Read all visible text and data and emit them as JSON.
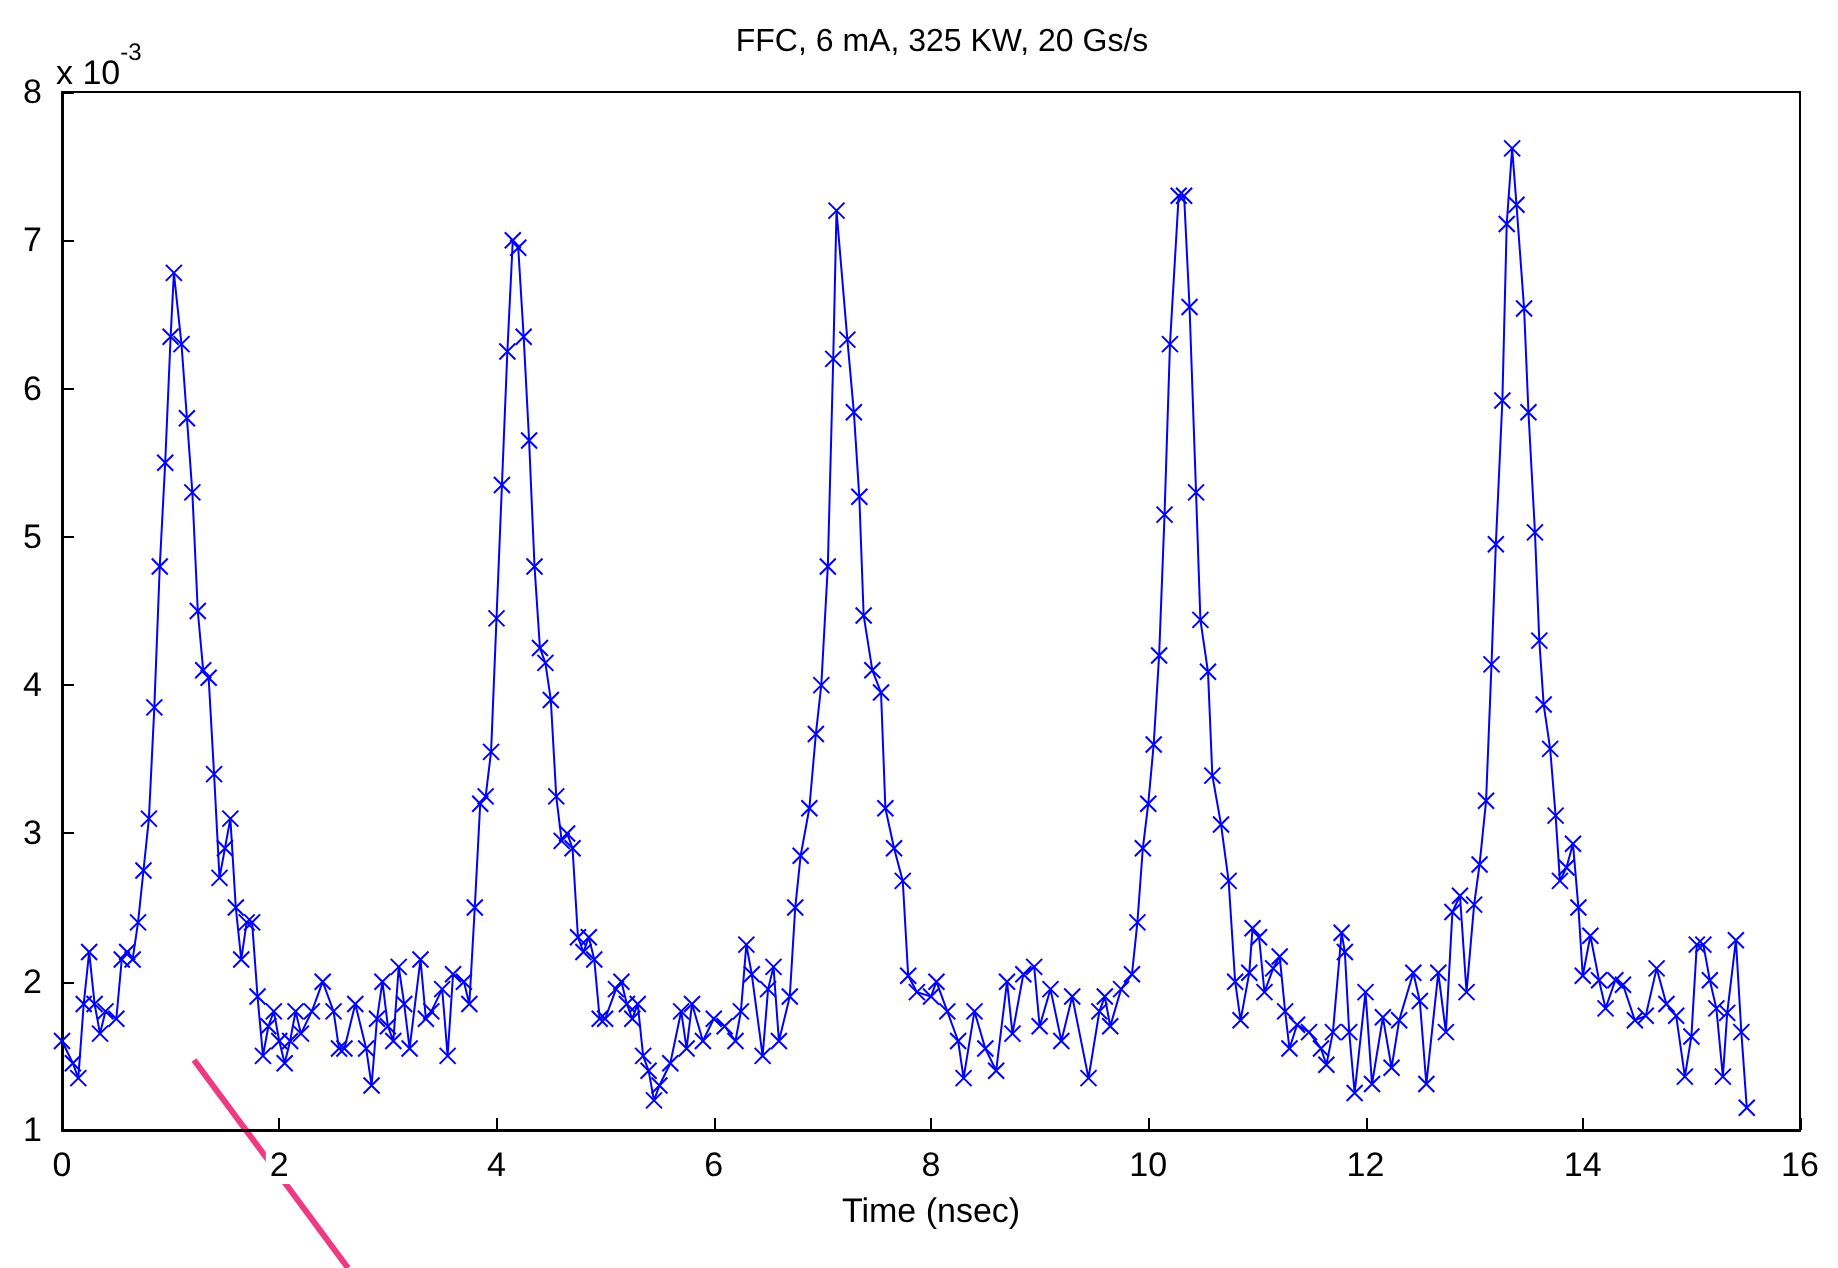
{
  "chart_data": {
    "type": "line",
    "title": "FFC, 6 mA, 325 KW, 20 Gs/s",
    "xlabel": "Time (nsec)",
    "annotations": [
      "x 10$^{-3}$"
    ],
    "xlim": [
      0,
      16
    ],
    "xticks": [
      0,
      2,
      4,
      6,
      8,
      10,
      12,
      14,
      16
    ],
    "ylim": [
      1,
      8
    ],
    "yticks": [
      1,
      2,
      3,
      4,
      5,
      6,
      7,
      8
    ],
    "grid": false,
    "marker": "cross",
    "line_style": "solid",
    "series": [
      {
        "color": "#0000ff",
        "x": [
          0,
          0.1,
          0.15,
          0.2,
          0.25,
          0.3,
          0.35,
          0.4,
          0.5,
          0.55,
          0.6,
          0.65,
          0.7,
          0.75,
          0.8,
          0.85,
          0.9,
          0.95,
          1.0,
          1.03,
          1.1,
          1.15,
          1.2,
          1.25,
          1.3,
          1.35,
          1.4,
          1.45,
          1.5,
          1.55,
          1.6,
          1.65,
          1.7,
          1.75,
          1.8,
          1.85,
          1.9,
          1.95,
          2.0,
          2.05,
          2.1,
          2.15,
          2.2,
          2.3,
          2.4,
          2.5,
          2.55,
          2.6,
          2.7,
          2.8,
          2.85,
          2.9,
          2.95,
          3.0,
          3.05,
          3.1,
          3.15,
          3.2,
          3.3,
          3.35,
          3.4,
          3.5,
          3.55,
          3.6,
          3.7,
          3.75,
          3.8,
          3.85,
          3.9,
          3.95,
          4.0,
          4.05,
          4.1,
          4.15,
          4.2,
          4.25,
          4.3,
          4.35,
          4.4,
          4.45,
          4.5,
          4.55,
          4.6,
          4.65,
          4.7,
          4.75,
          4.8,
          4.85,
          4.9,
          4.95,
          5.0,
          5.1,
          5.15,
          5.2,
          5.25,
          5.3,
          5.35,
          5.4,
          5.45,
          5.5,
          5.6,
          5.7,
          5.75,
          5.8,
          5.9,
          6.0,
          6.1,
          6.2,
          6.25,
          6.3,
          6.35,
          6.45,
          6.5,
          6.55,
          6.6,
          6.7,
          6.75,
          6.8,
          6.88,
          6.94,
          6.99,
          7.05,
          7.1,
          7.13,
          7.23,
          7.29,
          7.34,
          7.38,
          7.46,
          7.54,
          7.58,
          7.66,
          7.74,
          7.79,
          7.87,
          8.0,
          8.05,
          8.15,
          8.25,
          8.3,
          8.4,
          8.5,
          8.6,
          8.7,
          8.75,
          8.85,
          8.95,
          9.0,
          9.1,
          9.2,
          9.3,
          9.45,
          9.55,
          9.6,
          9.65,
          9.75,
          9.85,
          9.9,
          9.95,
          10.0,
          10.05,
          10.1,
          10.15,
          10.2,
          10.28,
          10.33,
          10.38,
          10.44,
          10.48,
          10.55,
          10.59,
          10.67,
          10.74,
          10.8,
          10.85,
          10.93,
          10.96,
          11.02,
          11.07,
          11.15,
          11.21,
          11.26,
          11.3,
          11.37,
          11.48,
          11.59,
          11.64,
          11.7,
          11.78,
          11.81,
          11.85,
          11.9,
          12.0,
          12.06,
          12.16,
          12.24,
          12.31,
          12.44,
          12.5,
          12.56,
          12.67,
          12.74,
          12.8,
          12.87,
          12.93,
          13.0,
          13.05,
          13.11,
          13.16,
          13.2,
          13.26,
          13.3,
          13.35,
          13.39,
          13.46,
          13.5,
          13.56,
          13.6,
          13.64,
          13.7,
          13.75,
          13.79,
          13.85,
          13.91,
          13.96,
          14.0,
          14.07,
          14.15,
          14.21,
          14.3,
          14.37,
          14.48,
          14.58,
          14.68,
          14.77,
          14.86,
          14.94,
          15.0,
          15.05,
          15.11,
          15.17,
          15.23,
          15.29,
          15.33,
          15.41,
          15.46,
          15.51
        ],
        "values": [
          1.6,
          1.45,
          1.35,
          1.85,
          2.2,
          1.85,
          1.65,
          1.8,
          1.75,
          2.15,
          2.2,
          2.15,
          2.4,
          2.75,
          3.1,
          3.85,
          4.8,
          5.5,
          6.35,
          6.78,
          6.3,
          5.8,
          5.3,
          4.5,
          4.1,
          4.05,
          3.4,
          2.7,
          2.9,
          3.1,
          2.5,
          2.15,
          2.4,
          2.4,
          1.9,
          1.5,
          1.7,
          1.8,
          1.6,
          1.45,
          1.6,
          1.8,
          1.65,
          1.8,
          2.0,
          1.8,
          1.55,
          1.55,
          1.85,
          1.55,
          1.3,
          1.75,
          2.0,
          1.7,
          1.6,
          2.1,
          1.85,
          1.55,
          2.15,
          1.75,
          1.8,
          1.95,
          1.5,
          2.05,
          2.0,
          1.85,
          2.5,
          3.2,
          3.25,
          3.55,
          4.45,
          5.35,
          6.25,
          7.0,
          6.95,
          6.35,
          5.65,
          4.8,
          4.25,
          4.15,
          3.9,
          3.25,
          2.95,
          3.0,
          2.9,
          2.3,
          2.2,
          2.3,
          2.15,
          1.75,
          1.75,
          1.95,
          2.0,
          1.85,
          1.75,
          1.85,
          1.5,
          1.4,
          1.2,
          1.3,
          1.45,
          1.8,
          1.55,
          1.85,
          1.6,
          1.75,
          1.7,
          1.6,
          1.8,
          2.25,
          2.05,
          1.5,
          1.95,
          2.1,
          1.6,
          1.9,
          2.5,
          2.85,
          3.17,
          3.67,
          4.0,
          4.8,
          6.2,
          7.2,
          6.33,
          5.84,
          5.27,
          4.47,
          4.1,
          3.95,
          3.17,
          2.9,
          2.68,
          2.04,
          1.93,
          1.9,
          2.0,
          1.8,
          1.6,
          1.35,
          1.8,
          1.55,
          1.4,
          2.0,
          1.65,
          2.05,
          2.1,
          1.7,
          1.95,
          1.6,
          1.9,
          1.35,
          1.8,
          1.9,
          1.7,
          1.95,
          2.05,
          2.4,
          2.9,
          3.2,
          3.6,
          4.2,
          5.15,
          6.3,
          7.3,
          7.3,
          6.55,
          5.3,
          4.44,
          4.09,
          3.39,
          3.06,
          2.68,
          2.0,
          1.74,
          2.06,
          2.36,
          2.3,
          1.93,
          2.09,
          2.17,
          1.8,
          1.55,
          1.71,
          1.66,
          1.55,
          1.44,
          1.66,
          2.33,
          2.2,
          1.66,
          1.25,
          1.93,
          1.31,
          1.76,
          1.42,
          1.74,
          2.06,
          1.87,
          1.31,
          2.06,
          1.66,
          2.47,
          2.58,
          1.93,
          2.52,
          2.79,
          3.22,
          4.14,
          4.95,
          5.92,
          7.11,
          7.62,
          7.24,
          6.54,
          5.84,
          5.03,
          4.3,
          3.87,
          3.57,
          3.12,
          2.68,
          2.77,
          2.93,
          2.5,
          2.04,
          2.31,
          2.01,
          1.82,
          2.01,
          1.98,
          1.74,
          1.77,
          2.09,
          1.85,
          1.77,
          1.36,
          1.63,
          2.25,
          2.25,
          2.01,
          1.82,
          1.36,
          1.79,
          2.28,
          1.66,
          1.15
        ]
      }
    ]
  }
}
